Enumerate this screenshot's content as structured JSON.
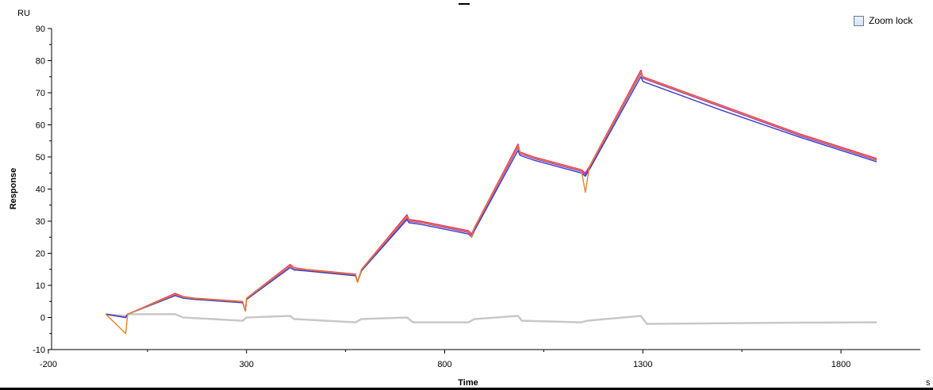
{
  "zoom_lock": {
    "label": "Zoom lock",
    "checked": false
  },
  "chart_data": {
    "type": "line",
    "title": "",
    "xlabel": "Time",
    "ylabel": "Response",
    "y_unit": "RU",
    "x_unit": "s",
    "xlim": [
      -200,
      1900
    ],
    "ylim": [
      -10,
      90
    ],
    "x_ticks": [
      -200,
      300,
      800,
      1300,
      1800
    ],
    "y_ticks": [
      -10,
      0,
      10,
      20,
      30,
      40,
      50,
      60,
      70,
      80,
      90
    ],
    "grid": false,
    "legend": "none",
    "series": [
      {
        "color": "#e8198b",
        "x": [
          -55,
          -5,
          0,
          120,
          140,
          170,
          290,
          297,
          300,
          410,
          420,
          450,
          575,
          580,
          590,
          705,
          710,
          740,
          860,
          868,
          875,
          985,
          990,
          1025,
          1145,
          1155,
          1165,
          1295,
          1300,
          1500,
          1700,
          1890
        ],
        "y": [
          1,
          0,
          1,
          7.5,
          6.5,
          6,
          5,
          2,
          6,
          16.5,
          15.5,
          15,
          13.5,
          11,
          15,
          32,
          30.5,
          30,
          27,
          26,
          28,
          54,
          51.5,
          50,
          46,
          45,
          47,
          77,
          75,
          66,
          57,
          49.5
        ]
      },
      {
        "color": "#9b3fd4",
        "x": [
          -55,
          -5,
          0,
          120,
          140,
          170,
          290,
          297,
          300,
          410,
          420,
          450,
          575,
          580,
          590,
          705,
          710,
          740,
          860,
          868,
          875,
          985,
          990,
          1025,
          1145,
          1155,
          1165,
          1295,
          1300,
          1500,
          1700,
          1890
        ],
        "y": [
          1,
          0,
          1,
          7,
          6.2,
          5.8,
          4.8,
          2,
          5.8,
          16,
          15.2,
          14.8,
          13.2,
          11,
          14.8,
          31,
          30,
          29.5,
          26.5,
          25.5,
          27.5,
          53,
          51,
          49.5,
          45.5,
          44.5,
          46.5,
          76,
          74.5,
          65.5,
          56.5,
          49
        ]
      },
      {
        "color": "#3a3ec8",
        "x": [
          -55,
          -5,
          0,
          120,
          140,
          170,
          290,
          297,
          300,
          410,
          420,
          450,
          575,
          580,
          590,
          705,
          710,
          740,
          860,
          868,
          875,
          985,
          990,
          1025,
          1145,
          1155,
          1165,
          1295,
          1300,
          1500,
          1700,
          1890
        ],
        "y": [
          1,
          0,
          1,
          6.8,
          6,
          5.6,
          4.6,
          2,
          5.6,
          15.5,
          14.8,
          14.5,
          13,
          11,
          14.5,
          30.5,
          29.5,
          29,
          26,
          25,
          27,
          52,
          50.5,
          49,
          45,
          44,
          46,
          75,
          73.5,
          64.5,
          56,
          48.5
        ]
      },
      {
        "color": "#e8821e",
        "x": [
          -55,
          -5,
          0,
          120,
          140,
          170,
          290,
          297,
          300,
          410,
          420,
          450,
          575,
          580,
          590,
          705,
          710,
          740,
          860,
          868,
          875,
          985,
          990,
          1025,
          1145,
          1155,
          1165,
          1295,
          1300,
          1500,
          1700,
          1890
        ],
        "y": [
          1,
          -5,
          1,
          7.2,
          6.3,
          5.9,
          4.9,
          2,
          5.9,
          16.2,
          15.3,
          14.9,
          13.3,
          11,
          14.9,
          31.5,
          30.2,
          29.7,
          26.8,
          25,
          27.8,
          53.5,
          51.2,
          49.8,
          45.8,
          39,
          46.8,
          76.5,
          74.8,
          65.8,
          56.8,
          49.2
        ]
      },
      {
        "color": "#c8c8c8",
        "x": [
          -55,
          -5,
          0,
          50,
          120,
          140,
          290,
          300,
          410,
          420,
          575,
          590,
          705,
          720,
          860,
          875,
          985,
          995,
          1145,
          1160,
          1295,
          1310,
          1500,
          1700,
          1890
        ],
        "y": [
          1,
          0.5,
          1,
          1,
          1,
          0,
          -1,
          0,
          0.5,
          -0.5,
          -1.5,
          -0.5,
          0,
          -1.5,
          -1.5,
          -0.5,
          0.5,
          -1,
          -1.5,
          -1,
          0.5,
          -2,
          -1.8,
          -1.6,
          -1.5
        ]
      }
    ]
  }
}
